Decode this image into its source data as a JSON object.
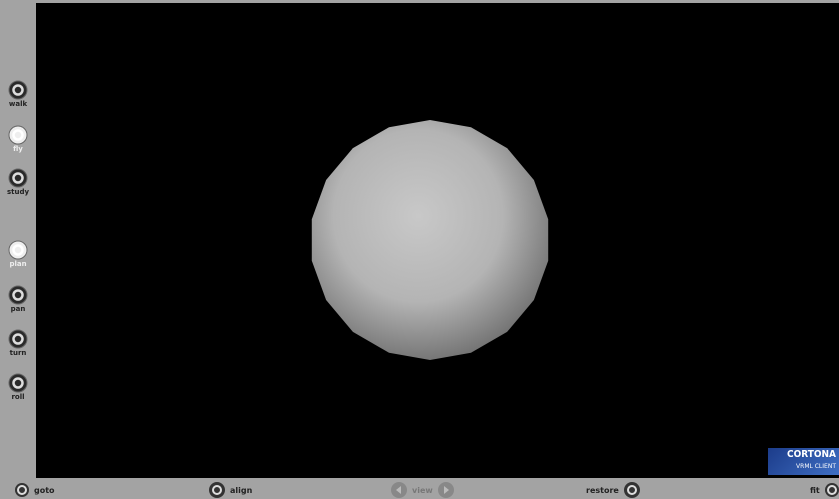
{
  "sidebar": {
    "buttons": [
      "walk",
      "fly",
      "study",
      "plan",
      "pan",
      "turn",
      "roll"
    ]
  },
  "toolbar": {
    "goto": "goto",
    "align": "align",
    "view": "view",
    "restore": "restore",
    "fit": "fit"
  },
  "logo": {
    "title": "CORTONA",
    "subtitle": "VRML CLIENT"
  }
}
